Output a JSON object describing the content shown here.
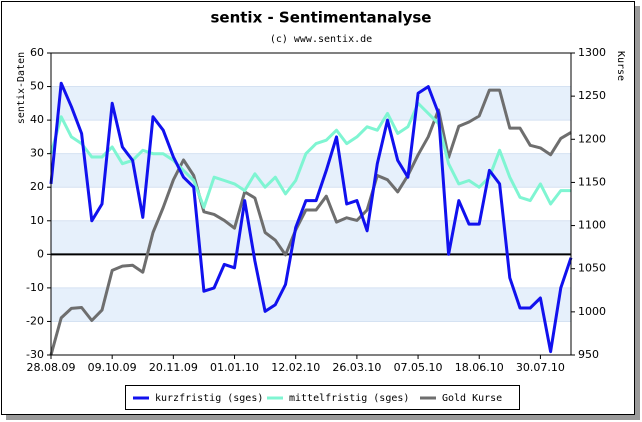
{
  "chart_data": {
    "type": "line",
    "title": "sentix - Sentimentanalyse",
    "subtitle": "(c) www.sentix.de",
    "y_label": "sentix-Daten",
    "y2_label": "Kurse",
    "categories": [
      "28.08.09",
      null,
      null,
      null,
      null,
      null,
      "09.10.09",
      null,
      null,
      null,
      null,
      null,
      "20.11.09",
      null,
      null,
      null,
      null,
      null,
      "01.01.10",
      null,
      null,
      null,
      null,
      null,
      "12.02.10",
      null,
      null,
      null,
      null,
      null,
      "26.03.10",
      null,
      null,
      null,
      null,
      null,
      "07.05.10",
      null,
      null,
      null,
      null,
      null,
      "18.06.10",
      null,
      null,
      null,
      null,
      null,
      "30.07.10",
      null,
      null,
      null
    ],
    "series": [
      {
        "name": "kurzfristig (sges)",
        "color": "#1111ee",
        "axis": "y",
        "values": [
          21,
          51,
          44,
          36,
          10,
          15,
          45,
          32,
          28,
          11,
          41,
          37,
          29,
          23,
          20,
          -11,
          -10,
          -3,
          -4,
          16,
          -2,
          -17,
          -15,
          -9,
          8,
          16,
          16,
          25,
          35,
          15,
          16,
          7,
          27,
          40,
          28,
          23,
          48,
          50,
          42,
          0,
          16,
          9,
          9,
          25,
          21,
          -7,
          -16,
          -16,
          -13,
          -29,
          -10,
          -1
        ]
      },
      {
        "name": "mittelfristig (sges)",
        "color": "#7ff5d2",
        "axis": "y",
        "values": [
          30,
          41,
          35,
          33,
          29,
          29,
          32,
          27,
          28,
          31,
          30,
          30,
          28,
          25,
          22,
          14,
          23,
          22,
          21,
          19,
          24,
          20,
          23,
          18,
          22,
          30,
          33,
          34,
          37,
          33,
          35,
          38,
          37,
          42,
          36,
          38,
          45,
          42,
          39,
          27,
          21,
          22,
          20,
          23,
          31,
          23,
          17,
          16,
          21,
          15,
          19,
          19
        ]
      },
      {
        "name": "Gold Kurse",
        "color": "#6e6e6e",
        "axis": "y2",
        "values": [
          950,
          993,
          1004,
          1005,
          990,
          1002,
          1048,
          1053,
          1054,
          1046,
          1092,
          1121,
          1153,
          1176,
          1158,
          1116,
          1113,
          1106,
          1097,
          1139,
          1132,
          1092,
          1083,
          1066,
          1095,
          1118,
          1118,
          1134,
          1104,
          1109,
          1106,
          1118,
          1158,
          1153,
          1139,
          1158,
          1182,
          1203,
          1234,
          1179,
          1215,
          1220,
          1227,
          1257,
          1257,
          1213,
          1213,
          1193,
          1190,
          1182,
          1201,
          1208
        ]
      }
    ],
    "ylim": [
      -30,
      60
    ],
    "yticks": [
      -30,
      -20,
      -10,
      0,
      10,
      20,
      30,
      40,
      50,
      60
    ],
    "y2lim": [
      950,
      1300
    ],
    "y2ticks": [
      950,
      1000,
      1050,
      1100,
      1150,
      1200,
      1250,
      1300
    ],
    "grid": true,
    "legend": "bottom"
  }
}
